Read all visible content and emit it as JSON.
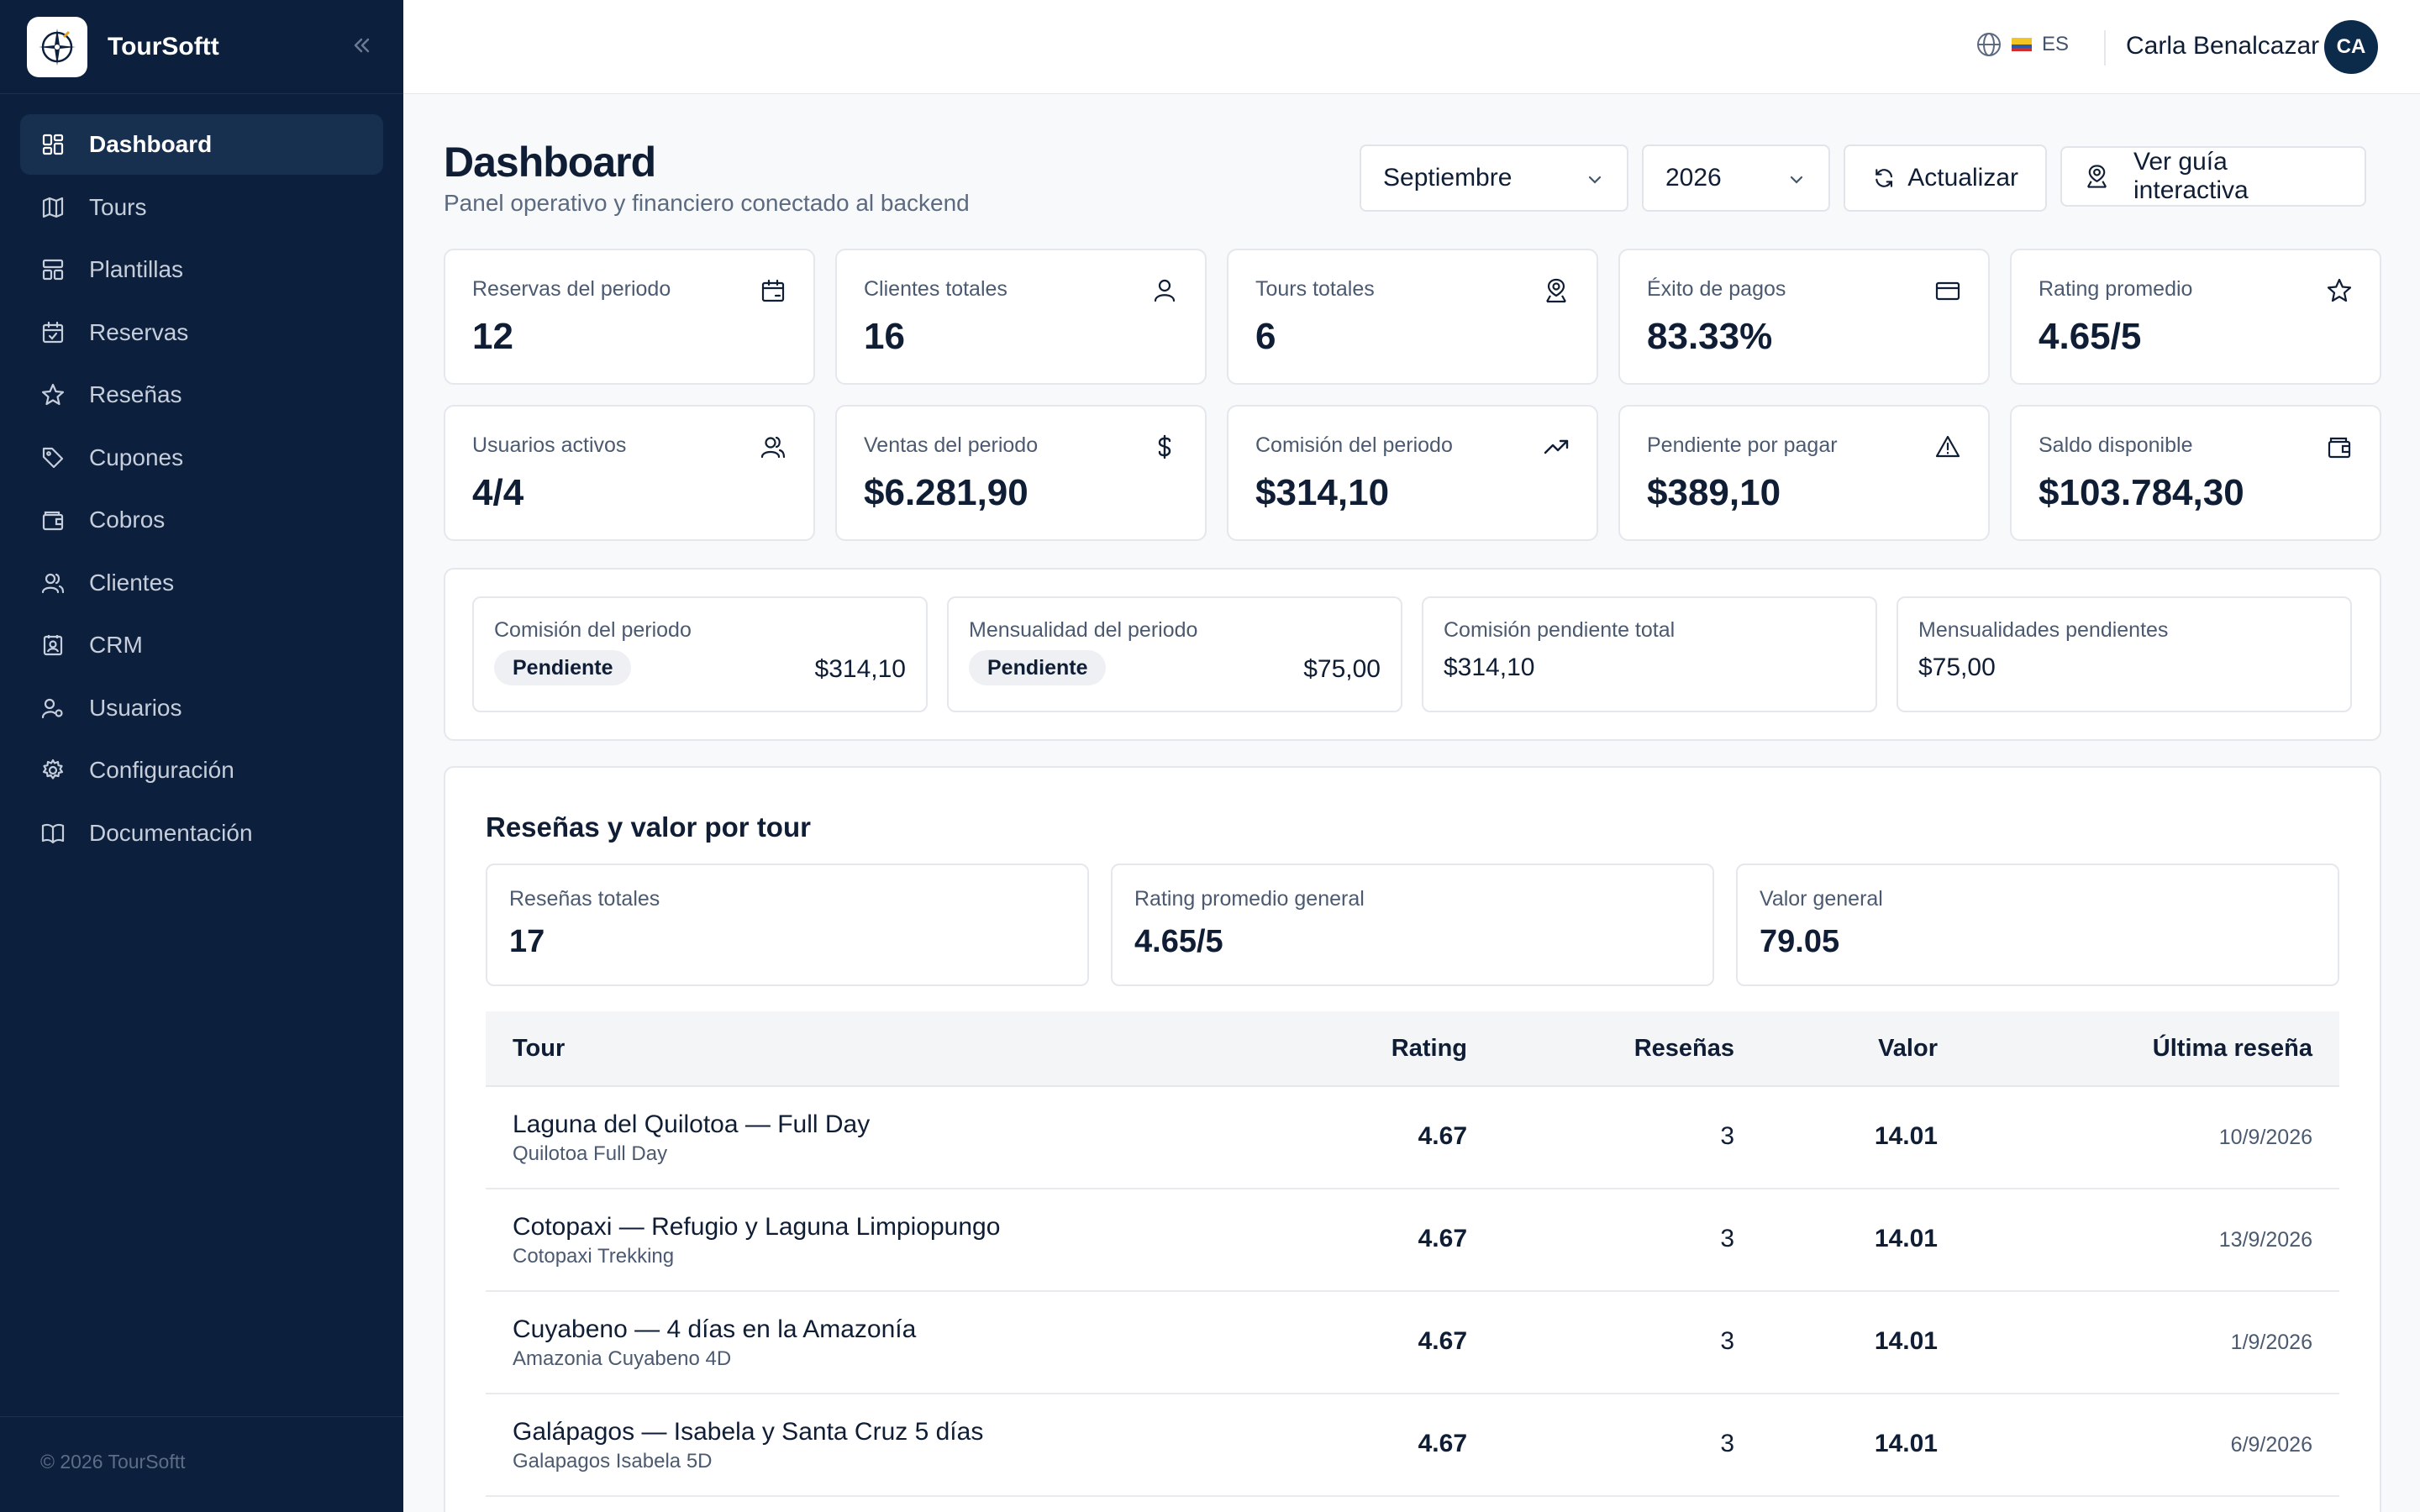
{
  "app": {
    "brand": "TourSoftt",
    "footer": "© 2026 TourSoftt"
  },
  "sidebar": {
    "items": [
      {
        "label": "Dashboard",
        "icon": "dashboard-icon",
        "active": true
      },
      {
        "label": "Tours",
        "icon": "map-icon"
      },
      {
        "label": "Plantillas",
        "icon": "template-icon"
      },
      {
        "label": "Reservas",
        "icon": "calendar-check-icon"
      },
      {
        "label": "Reseñas",
        "icon": "star-icon"
      },
      {
        "label": "Cupones",
        "icon": "tag-icon"
      },
      {
        "label": "Cobros",
        "icon": "wallet-icon"
      },
      {
        "label": "Clientes",
        "icon": "users-icon"
      },
      {
        "label": "CRM",
        "icon": "contact-icon"
      },
      {
        "label": "Usuarios",
        "icon": "user-cog-icon"
      },
      {
        "label": "Configuración",
        "icon": "gear-icon"
      },
      {
        "label": "Documentación",
        "icon": "book-icon"
      }
    ]
  },
  "topbar": {
    "language": "ES",
    "user_name": "Carla Benalcazar",
    "user_initials": "CA"
  },
  "header": {
    "title": "Dashboard",
    "subtitle": "Panel operativo y financiero conectado al backend",
    "month": "Septiembre",
    "year": "2026",
    "refresh_label": "Actualizar",
    "guide_label": "Ver guía interactiva"
  },
  "stats_row1": [
    {
      "label": "Reservas del periodo",
      "value": "12",
      "icon": "calendar-icon"
    },
    {
      "label": "Clientes totales",
      "value": "16",
      "icon": "user-icon"
    },
    {
      "label": "Tours totales",
      "value": "6",
      "icon": "map-pin-icon"
    },
    {
      "label": "Éxito de pagos",
      "value": "83.33%",
      "icon": "credit-card-icon"
    },
    {
      "label": "Rating promedio",
      "value": "4.65/5",
      "icon": "star-icon"
    }
  ],
  "stats_row2": [
    {
      "label": "Usuarios activos",
      "value": "4/4",
      "icon": "users-icon"
    },
    {
      "label": "Ventas del periodo",
      "value": "$6.281,90",
      "icon": "dollar-icon"
    },
    {
      "label": "Comisión del periodo",
      "value": "$314,10",
      "icon": "trending-up-icon"
    },
    {
      "label": "Pendiente por pagar",
      "value": "$389,10",
      "icon": "alert-triangle-icon"
    },
    {
      "label": "Saldo disponible",
      "value": "$103.784,30",
      "icon": "wallet-icon"
    }
  ],
  "billing": [
    {
      "label": "Comisión del periodo",
      "badge": "Pendiente",
      "value": "$314,10"
    },
    {
      "label": "Mensualidad del periodo",
      "badge": "Pendiente",
      "value": "$75,00"
    },
    {
      "label": "Comisión pendiente total",
      "value": "$314,10"
    },
    {
      "label": "Mensualidades pendientes",
      "value": "$75,00"
    }
  ],
  "reviews": {
    "title": "Reseñas y valor por tour",
    "summary": [
      {
        "label": "Reseñas totales",
        "value": "17"
      },
      {
        "label": "Rating promedio general",
        "value": "4.65/5"
      },
      {
        "label": "Valor general",
        "value": "79.05"
      }
    ],
    "columns": [
      "Tour",
      "Rating",
      "Reseñas",
      "Valor",
      "Última reseña"
    ],
    "rows": [
      {
        "name": "Laguna del Quilotoa — Full Day",
        "sub": "Quilotoa Full Day",
        "rating": "4.67",
        "count": "3",
        "value": "14.01",
        "last": "10/9/2026"
      },
      {
        "name": "Cotopaxi — Refugio y Laguna Limpiopungo",
        "sub": "Cotopaxi Trekking",
        "rating": "4.67",
        "count": "3",
        "value": "14.01",
        "last": "13/9/2026"
      },
      {
        "name": "Cuyabeno — 4 días en la Amazonía",
        "sub": "Amazonia Cuyabeno 4D",
        "rating": "4.67",
        "count": "3",
        "value": "14.01",
        "last": "1/9/2026"
      },
      {
        "name": "Galápagos — Isabela y Santa Cruz 5 días",
        "sub": "Galapagos Isabela 5D",
        "rating": "4.67",
        "count": "3",
        "value": "14.01",
        "last": "6/9/2026"
      }
    ]
  }
}
